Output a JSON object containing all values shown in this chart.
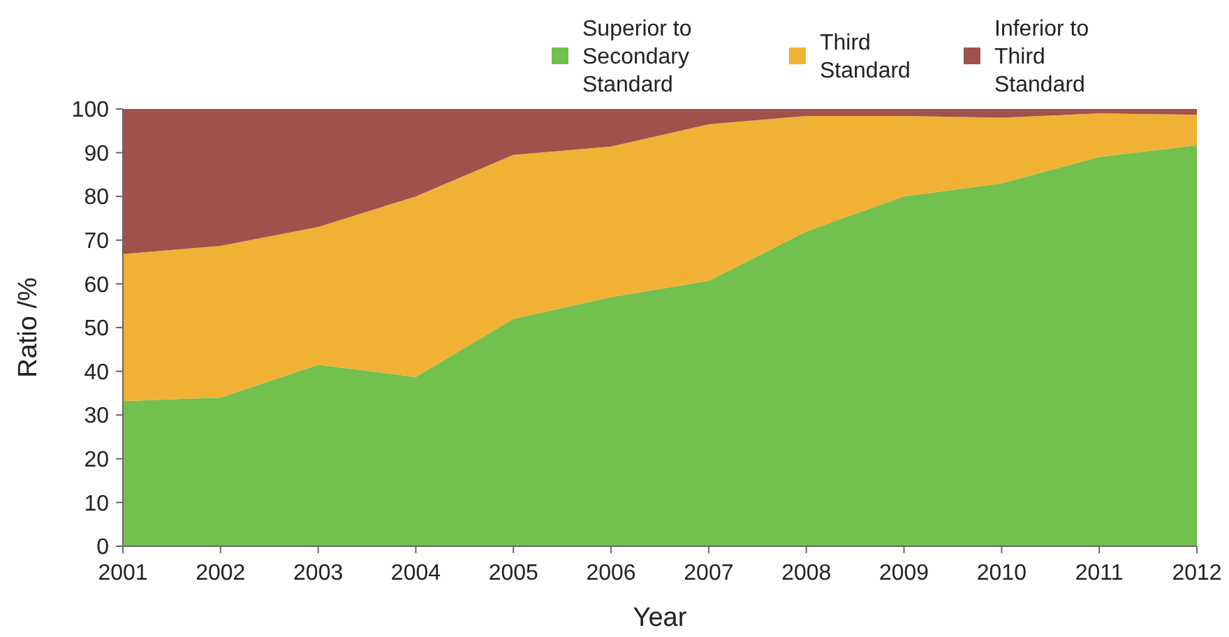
{
  "chart_data": {
    "type": "area",
    "stacked": true,
    "xlabel": "Year",
    "ylabel": "Ratio /%",
    "x": [
      2001,
      2002,
      2003,
      2004,
      2005,
      2006,
      2007,
      2008,
      2009,
      2010,
      2011,
      2012
    ],
    "xlim": [
      2001,
      2012
    ],
    "xticks": [
      2001,
      2002,
      2003,
      2004,
      2005,
      2006,
      2007,
      2008,
      2009,
      2010,
      2011,
      2012
    ],
    "ylim": [
      0,
      100
    ],
    "yticks": [
      0,
      10,
      20,
      30,
      40,
      50,
      60,
      70,
      80,
      90,
      100
    ],
    "legend": "top",
    "grid": false,
    "series": [
      {
        "name": "Superior to Secondary Standard",
        "color": "#72c04e",
        "values": [
          33.2,
          34,
          41.5,
          38.7,
          52,
          57,
          60.7,
          72,
          80,
          83,
          89,
          91.7
        ]
      },
      {
        "name": "Third Standard",
        "color": "#f0b135",
        "values": [
          33.6,
          34.7,
          31.5,
          41.3,
          37.5,
          34.4,
          35.8,
          26.4,
          18.4,
          15,
          10,
          7
        ]
      },
      {
        "name": "Inferior to Third Standard",
        "color": "#a0514b",
        "values": [
          33.2,
          31.3,
          27,
          20,
          10.5,
          8.6,
          3.5,
          1.6,
          1.6,
          2,
          1,
          1.3
        ]
      }
    ]
  }
}
